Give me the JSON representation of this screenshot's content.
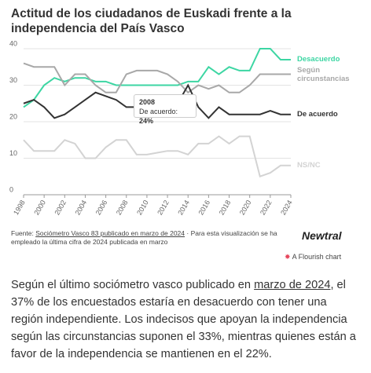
{
  "chart_data": {
    "type": "line",
    "title": "Actitud de los ciudadanos de Euskadi frente a la independencia del País Vasco",
    "x": [
      1998,
      1999,
      2000,
      2001,
      2002,
      2003,
      2004,
      2005,
      2006,
      2007,
      2008,
      2009,
      2010,
      2011,
      2012,
      2013,
      2014,
      2015,
      2016,
      2017,
      2018,
      2019,
      2020,
      2021,
      2022,
      2023,
      2024
    ],
    "series": [
      {
        "name": "Desacuerdo",
        "color": "#3dd6a3",
        "values": [
          24,
          26,
          30,
          32,
          31,
          32,
          32,
          31,
          31,
          30,
          30,
          30,
          30,
          30,
          30,
          30,
          31,
          31,
          35,
          33,
          35,
          34,
          34,
          40,
          40,
          37,
          37
        ]
      },
      {
        "name": "Según circunstancias",
        "color": "#a8a8a8",
        "values": [
          36,
          35,
          35,
          35,
          30,
          33,
          33,
          30,
          28,
          28,
          33,
          34,
          34,
          34,
          33,
          31,
          28,
          30,
          29,
          30,
          28,
          28,
          30,
          33,
          33,
          33,
          33
        ]
      },
      {
        "name": "De acuerdo",
        "color": "#333333",
        "values": [
          25,
          26,
          24,
          21,
          22,
          24,
          26,
          28,
          27,
          26,
          24,
          24,
          25,
          24,
          25,
          25,
          30,
          24,
          21,
          24,
          22,
          22,
          22,
          22,
          23,
          22,
          22
        ]
      },
      {
        "name": "NS/NC",
        "color": "#d3d3d3",
        "values": [
          15,
          12,
          12,
          12,
          15,
          14,
          10,
          10,
          13,
          15,
          15,
          11,
          11,
          11.5,
          12,
          12,
          11,
          14,
          14,
          16,
          14,
          16,
          16,
          5,
          6,
          8,
          8
        ]
      }
    ],
    "xlim": [
      1998,
      2024
    ],
    "xticks": [
      1998,
      2000,
      2002,
      2004,
      2006,
      2008,
      2010,
      2012,
      2014,
      2016,
      2018,
      2020,
      2022,
      2024
    ],
    "ylim": [
      0,
      40
    ],
    "yticks": [
      0,
      10,
      20,
      30,
      40
    ],
    "grid": true,
    "tooltip": {
      "title": "2008",
      "label": "De acuerdo:",
      "value": "24%"
    }
  },
  "source": {
    "prefix": "Fuente:",
    "link": "Sociómetro Vasco 83 publicado en marzo de 2024",
    "note": "· Para esta visualización se ha empleado la última cifra de 2024 publicada en marzo"
  },
  "logo": "Newtral",
  "flourish": "A Flourish chart",
  "paragraph": {
    "before": "Según el último sociómetro vasco publicado en",
    "link": "marzo de 2024",
    "after": ", el 37% de los encuestados estaría en desacuerdo con tener una región independiente. Los indecisos que apoyan la independencia según las circunstancias suponen el 33%, mientras quienes están a favor de la independencia se mantienen en el 22%."
  }
}
